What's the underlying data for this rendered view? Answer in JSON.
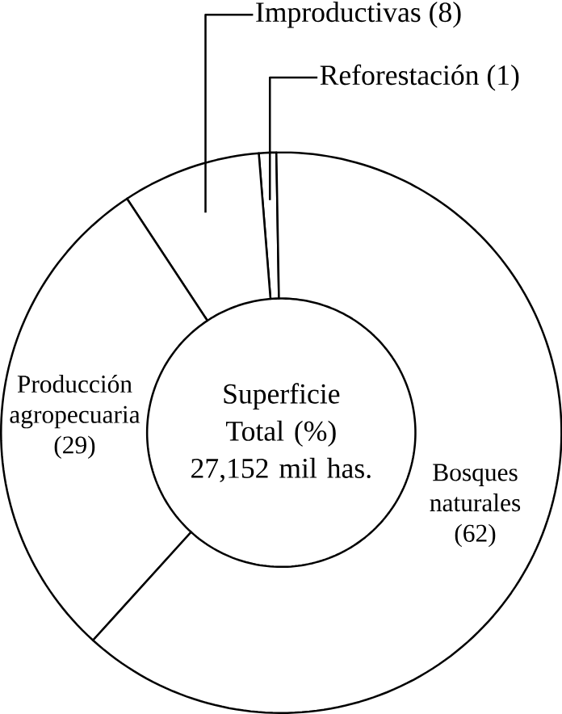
{
  "chart_data": {
    "type": "donut",
    "title": "Superficie Total (%)",
    "subtitle": "27,152 mil has.",
    "categories": [
      "Reforestación",
      "Improductivas",
      "Producción agropecuaria",
      "Bosques naturales"
    ],
    "values": [
      1,
      8,
      29,
      62
    ],
    "value_labels": [
      "(1)",
      "(8)",
      "(29)",
      "(62)"
    ],
    "colors": [
      "#ffffff",
      "#ffffff",
      "#ffffff",
      "#ffffff"
    ]
  }
}
